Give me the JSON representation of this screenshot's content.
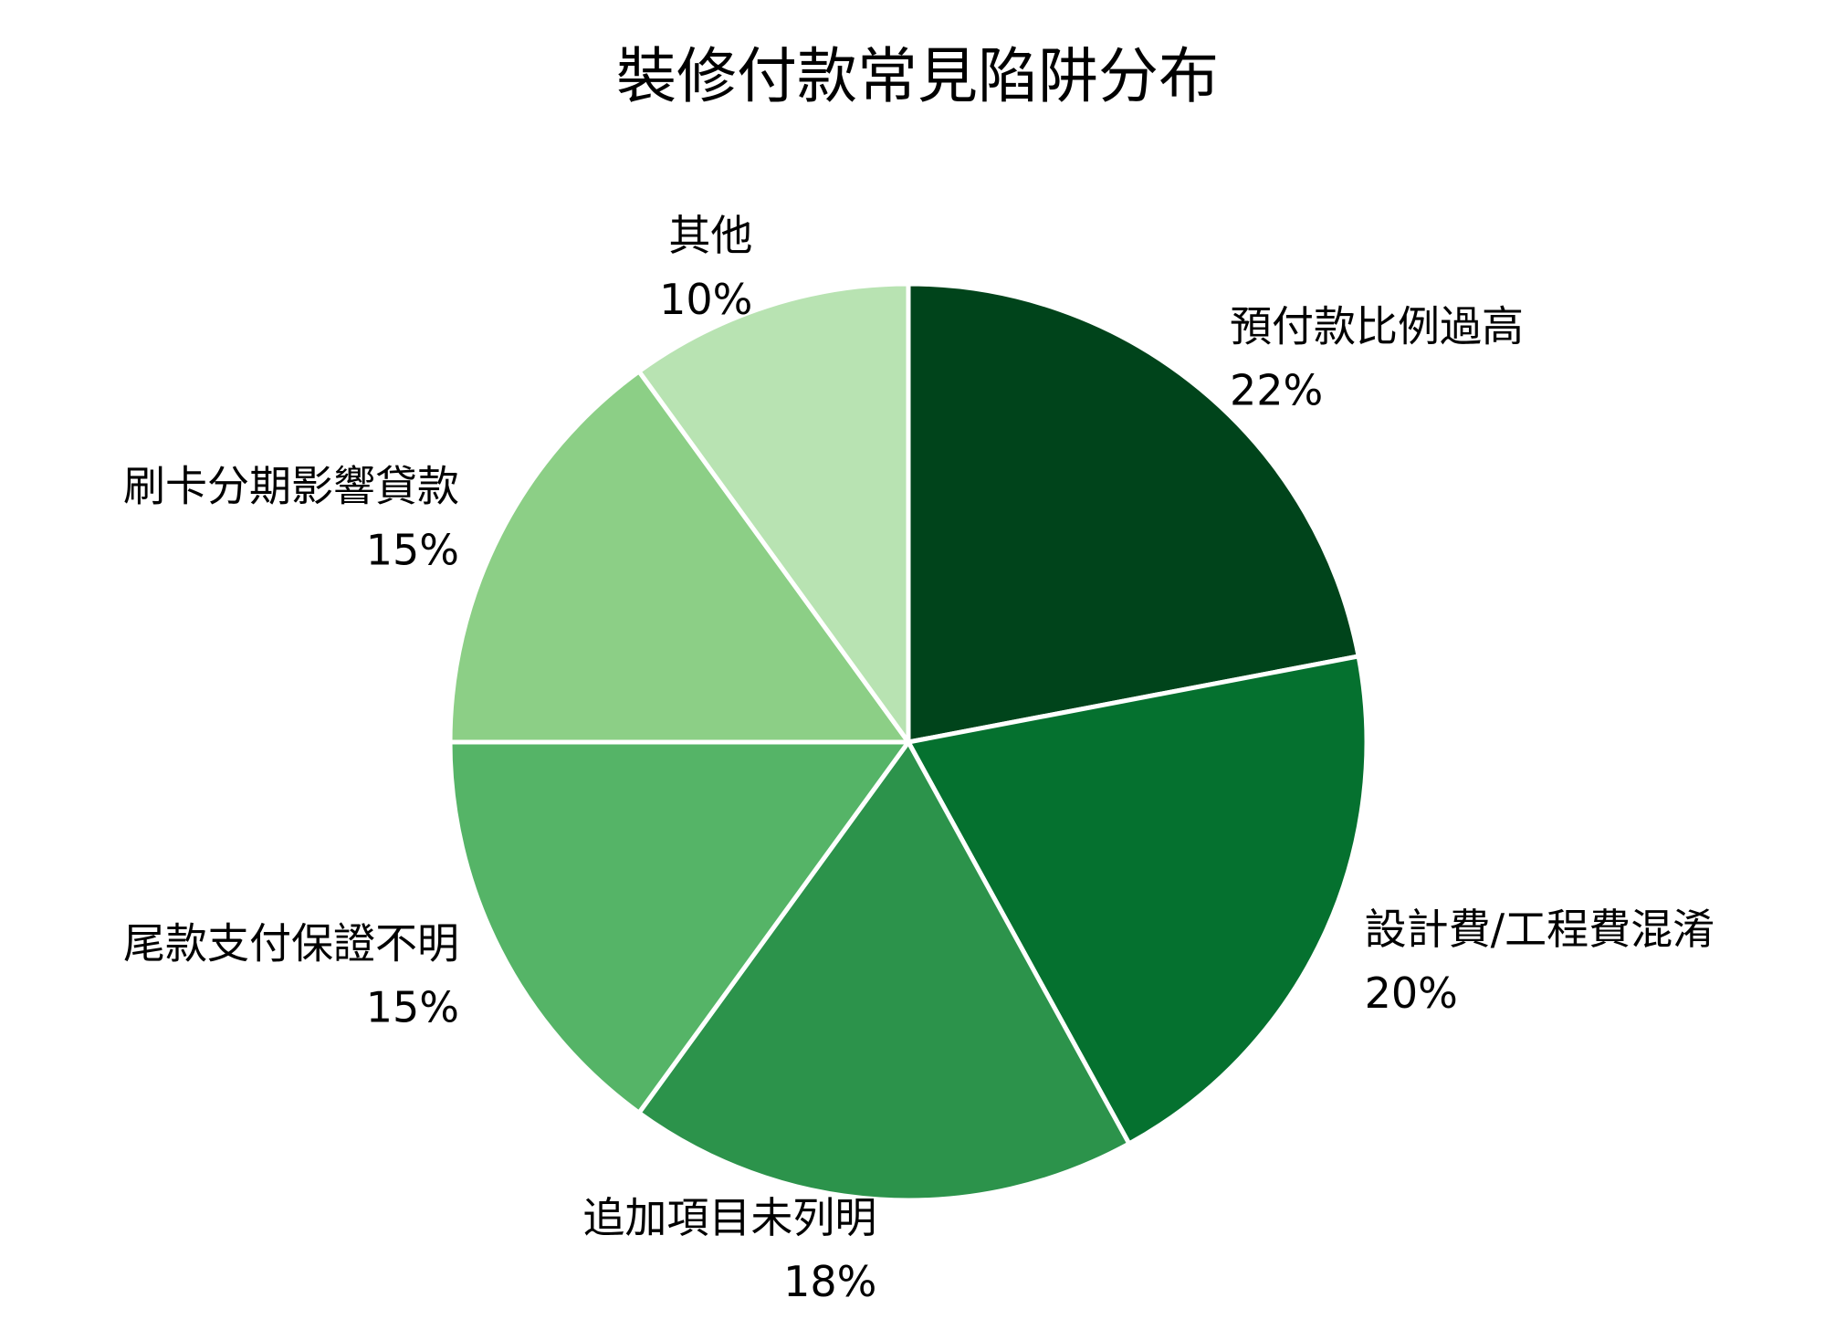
{
  "chart_data": {
    "type": "pie",
    "title": "裝修付款常見陷阱分布",
    "start_angle": "top",
    "direction": "clockwise",
    "slices": [
      {
        "label": "預付款比例過高",
        "value": 22,
        "pct_label": "22%",
        "color": "#00441b"
      },
      {
        "label": "設計費/工程費混淆",
        "value": 20,
        "pct_label": "20%",
        "color": "#05712f"
      },
      {
        "label": "追加項目未列明",
        "value": 18,
        "pct_label": "18%",
        "color": "#2c934b"
      },
      {
        "label": "尾款支付保證不明",
        "value": 15,
        "pct_label": "15%",
        "color": "#55b467"
      },
      {
        "label": "刷卡分期影響貸款",
        "value": 15,
        "pct_label": "15%",
        "color": "#8ccf86"
      },
      {
        "label": "其他",
        "value": 10,
        "pct_label": "10%",
        "color": "#b8e3b2"
      }
    ],
    "edge_color": "#ffffff"
  }
}
